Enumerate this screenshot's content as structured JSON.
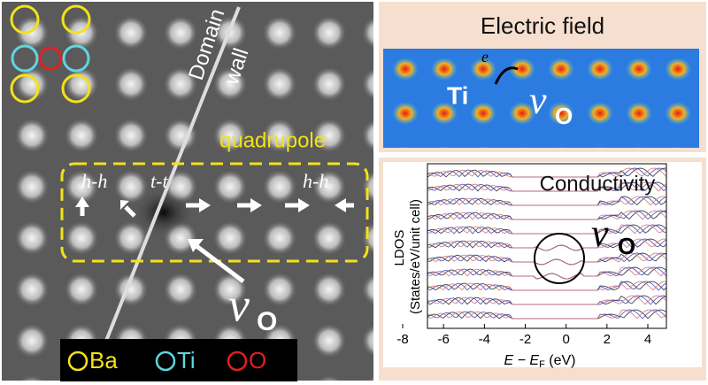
{
  "left_panel": {
    "domain": "Domain",
    "wall": "wall",
    "quadrupole": "quadrupole",
    "hh_left": "h-h",
    "tt": "t-t",
    "hh_right": "h-h",
    "vacancy": "v",
    "vacancy_sub": "O",
    "legend": [
      "Ba",
      "Ti",
      "O"
    ]
  },
  "electric_field": {
    "title": "Electric field",
    "ti": "Ti",
    "electron": "e",
    "vacancy": "v",
    "vacancy_sub": "O"
  },
  "conductivity": {
    "title": "Conductivity",
    "vacancy": "v",
    "vacancy_sub": "O",
    "ylabel": "LDOS",
    "ylabel2": "(States/eV/unit cell)",
    "xlabel": {
      "e": "E − E",
      "sub": "F",
      "unit": " (eV)"
    },
    "xlim": [
      -8.78,
      4.78
    ],
    "xticks": [
      -8,
      -6,
      -4,
      -2,
      0,
      2,
      4
    ]
  }
}
